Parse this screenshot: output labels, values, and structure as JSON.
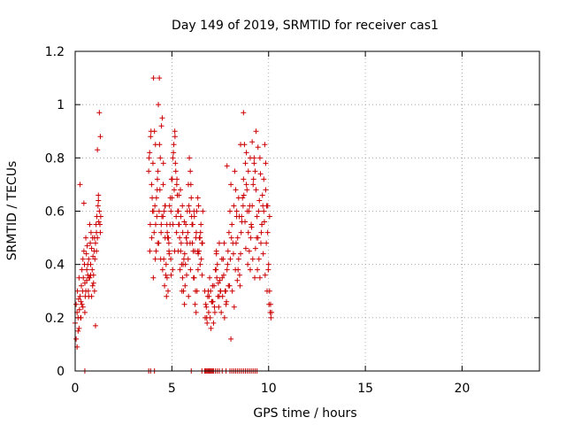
{
  "chart_data": {
    "type": "scatter",
    "title": "Day 149 of 2019, SRMTID for receiver cas1",
    "xlabel": "GPS time / hours",
    "ylabel": "SRMTID / TECUs",
    "xlim": [
      0,
      24
    ],
    "ylim": [
      0,
      1.2
    ],
    "xticks": [
      0,
      5,
      10,
      15,
      20
    ],
    "yticks": [
      0,
      0.2,
      0.4,
      0.6,
      0.8,
      1,
      1.2
    ],
    "ytick_labels": [
      "0",
      "0.2",
      "0.4",
      "0.6",
      "0.8",
      "1",
      "1.2"
    ],
    "grid": true,
    "marker": "+",
    "color": "#cc0000",
    "series": [
      {
        "name": "cas1",
        "x": [
          0.0,
          0.05,
          0.1,
          0.12,
          0.15,
          0.18,
          0.2,
          0.22,
          0.25,
          0.28,
          0.3,
          0.32,
          0.35,
          0.38,
          0.4,
          0.42,
          0.45,
          0.48,
          0.5,
          0.52,
          0.55,
          0.58,
          0.6,
          0.62,
          0.65,
          0.68,
          0.7,
          0.72,
          0.75,
          0.78,
          0.8,
          0.82,
          0.85,
          0.88,
          0.9,
          0.92,
          0.95,
          0.98,
          1.0,
          1.02,
          1.05,
          1.08,
          1.1,
          1.12,
          1.15,
          1.18,
          1.2,
          1.22,
          1.25,
          1.28,
          1.3,
          1.32,
          0.05,
          0.15,
          0.25,
          0.35,
          0.45,
          0.55,
          0.65,
          0.75,
          0.85,
          0.95,
          1.05,
          1.15,
          1.25,
          0.1,
          0.3,
          0.5,
          0.7,
          0.9,
          1.1,
          1.3,
          0.2,
          0.4,
          0.6,
          0.8,
          1.0,
          1.2,
          3.8,
          3.85,
          3.9,
          3.95,
          4.0,
          4.05,
          4.1,
          4.15,
          4.2,
          4.25,
          4.3,
          4.35,
          4.4,
          4.45,
          4.5,
          4.55,
          4.6,
          4.65,
          4.7,
          4.75,
          4.8,
          4.85,
          4.9,
          4.95,
          5.0,
          5.05,
          5.1,
          5.15,
          5.2,
          5.25,
          5.3,
          5.35,
          5.4,
          5.45,
          5.5,
          5.55,
          5.6,
          5.65,
          5.7,
          5.75,
          5.8,
          5.85,
          5.9,
          5.95,
          6.0,
          6.05,
          6.1,
          6.15,
          6.2,
          6.25,
          6.3,
          6.35,
          6.4,
          6.45,
          6.5,
          6.55,
          6.6,
          3.82,
          3.92,
          4.02,
          4.12,
          4.22,
          4.32,
          4.42,
          4.52,
          4.62,
          4.72,
          4.82,
          4.92,
          5.02,
          5.12,
          5.22,
          5.32,
          5.42,
          5.52,
          5.62,
          5.72,
          5.82,
          5.92,
          6.02,
          6.12,
          6.22,
          6.32,
          6.42,
          6.52,
          3.88,
          3.98,
          4.08,
          4.18,
          4.28,
          4.38,
          4.48,
          4.58,
          4.68,
          4.78,
          4.88,
          4.98,
          5.08,
          5.18,
          5.28,
          5.38,
          5.48,
          5.58,
          5.68,
          5.78,
          5.88,
          5.98,
          6.08,
          6.18,
          6.28,
          6.38,
          6.48,
          6.58,
          3.86,
          3.96,
          4.06,
          4.16,
          4.26,
          4.36,
          4.46,
          4.56,
          4.66,
          4.76,
          4.86,
          4.96,
          5.06,
          5.16,
          5.26,
          5.36,
          5.46,
          5.56,
          5.66,
          5.76,
          5.86,
          5.96,
          6.06,
          6.16,
          6.26,
          6.36,
          6.46,
          6.56,
          4.04,
          4.14,
          4.24,
          4.34,
          4.44,
          4.54,
          4.64,
          4.74,
          4.84,
          4.94,
          5.04,
          5.14,
          5.24,
          5.34,
          5.44,
          5.54,
          5.64,
          5.74,
          5.84,
          5.94,
          6.04,
          6.14,
          6.24,
          6.34,
          6.7,
          6.75,
          6.8,
          6.85,
          6.9,
          6.95,
          7.0,
          7.05,
          7.1,
          7.15,
          7.2,
          7.25,
          7.3,
          7.35,
          7.4,
          7.45,
          7.5,
          7.55,
          7.6,
          7.65,
          7.7,
          7.75,
          7.8,
          7.85,
          7.9,
          7.95,
          8.0,
          8.05,
          8.1,
          8.15,
          8.2,
          8.25,
          8.3,
          8.35,
          8.4,
          8.45,
          8.5,
          8.55,
          8.6,
          8.65,
          8.7,
          8.75,
          8.8,
          8.85,
          8.9,
          8.95,
          9.0,
          9.05,
          9.1,
          9.15,
          9.2,
          9.25,
          9.3,
          9.35,
          9.4,
          9.45,
          9.5,
          9.55,
          9.6,
          9.65,
          9.7,
          9.75,
          9.8,
          9.85,
          9.9,
          9.95,
          10.0,
          10.05,
          10.1,
          10.15,
          6.72,
          6.82,
          6.92,
          7.02,
          7.12,
          7.22,
          7.32,
          7.42,
          7.52,
          7.62,
          7.72,
          7.82,
          7.92,
          8.02,
          8.12,
          8.22,
          8.32,
          8.42,
          8.52,
          8.62,
          8.72,
          8.82,
          8.92,
          9.02,
          9.12,
          9.22,
          9.32,
          9.42,
          9.52,
          9.62,
          9.72,
          9.82,
          9.92,
          10.02,
          10.12,
          6.78,
          6.88,
          6.98,
          7.08,
          7.18,
          7.28,
          7.38,
          7.48,
          7.58,
          7.68,
          7.78,
          7.88,
          7.98,
          8.08,
          8.18,
          8.28,
          8.38,
          8.48,
          8.58,
          8.68,
          8.78,
          8.88,
          8.98,
          9.08,
          9.18,
          9.28,
          9.38,
          9.48,
          9.58,
          9.68,
          9.78,
          9.88,
          9.98,
          10.08,
          7.3,
          7.45,
          7.85,
          8.05,
          8.35,
          8.45,
          8.55,
          8.7,
          8.85,
          8.95,
          9.05,
          9.15,
          9.25,
          9.35,
          9.45,
          9.55,
          9.65,
          9.75,
          9.85,
          9.95,
          10.05,
          0.5,
          3.8,
          3.9,
          4.1,
          6.0,
          6.55,
          6.7,
          6.75,
          6.8,
          6.85,
          6.9,
          6.95,
          7.0,
          7.05,
          7.1,
          7.15,
          7.25,
          7.35,
          7.45,
          7.6,
          7.8,
          8.0,
          8.1,
          8.2,
          8.3,
          8.4,
          8.5,
          8.6,
          8.7,
          8.8,
          8.9,
          9.0,
          9.1,
          9.2,
          9.3,
          9.4
        ],
        "y": [
          0.18,
          0.25,
          0.22,
          0.3,
          0.2,
          0.27,
          0.35,
          0.23,
          0.28,
          0.2,
          0.26,
          0.32,
          0.38,
          0.3,
          0.42,
          0.35,
          0.45,
          0.4,
          0.33,
          0.28,
          0.5,
          0.44,
          0.38,
          0.47,
          0.36,
          0.3,
          0.42,
          0.35,
          0.55,
          0.48,
          0.4,
          0.52,
          0.46,
          0.38,
          0.5,
          0.43,
          0.36,
          0.45,
          0.5,
          0.42,
          0.48,
          0.55,
          0.52,
          0.58,
          0.5,
          0.62,
          0.66,
          0.56,
          0.6,
          0.55,
          0.52,
          0.58,
          0.12,
          0.15,
          0.7,
          0.25,
          0.63,
          0.3,
          0.4,
          0.35,
          0.28,
          0.33,
          0.17,
          0.83,
          0.97,
          0.09,
          0.2,
          0.22,
          0.28,
          0.32,
          0.45,
          0.88,
          0.16,
          0.24,
          0.34,
          0.36,
          0.3,
          0.64,
          0.75,
          0.82,
          0.88,
          0.7,
          0.6,
          1.1,
          0.9,
          0.85,
          0.65,
          0.72,
          1.0,
          1.1,
          0.8,
          0.55,
          0.95,
          0.7,
          0.6,
          0.5,
          0.4,
          0.35,
          0.3,
          0.45,
          0.55,
          0.6,
          0.65,
          0.8,
          0.85,
          0.9,
          0.75,
          0.7,
          0.6,
          0.55,
          0.5,
          0.45,
          0.4,
          0.35,
          0.3,
          0.25,
          0.4,
          0.5,
          0.6,
          0.7,
          0.8,
          0.75,
          0.65,
          0.55,
          0.45,
          0.35,
          0.25,
          0.22,
          0.3,
          0.38,
          0.45,
          0.5,
          0.55,
          0.48,
          0.6,
          0.8,
          0.9,
          0.78,
          0.62,
          0.58,
          0.48,
          0.42,
          0.38,
          0.32,
          0.28,
          0.5,
          0.65,
          0.72,
          0.68,
          0.58,
          0.45,
          0.38,
          0.3,
          0.42,
          0.55,
          0.52,
          0.6,
          0.58,
          0.35,
          0.3,
          0.45,
          0.5,
          0.42,
          0.55,
          0.65,
          0.52,
          0.45,
          0.75,
          0.68,
          0.58,
          0.42,
          0.36,
          0.5,
          0.62,
          0.72,
          0.82,
          0.78,
          0.66,
          0.55,
          0.48,
          0.4,
          0.32,
          0.48,
          0.62,
          0.7,
          0.55,
          0.45,
          0.6,
          0.62,
          0.52,
          0.48,
          0.45,
          0.5,
          0.6,
          0.55,
          0.48,
          0.85,
          0.92,
          0.78,
          0.62,
          0.52,
          0.44,
          0.36,
          0.55,
          0.88,
          0.72,
          0.66,
          0.58,
          0.52,
          0.44,
          0.36,
          0.28,
          0.38,
          0.48,
          0.58,
          0.52,
          0.44,
          0.4,
          0.36,
          0.35,
          0.42,
          0.68,
          0.6,
          0.52,
          0.58,
          0.62,
          0.55,
          0.48,
          0.42,
          0.38,
          0.45,
          0.52,
          0.6,
          0.68,
          0.62,
          0.56,
          0.5,
          0.42,
          0.48,
          0.55,
          0.6,
          0.5,
          0.65,
          0.3,
          0.25,
          0.2,
          0.28,
          0.22,
          0.35,
          0.3,
          0.26,
          0.32,
          0.18,
          0.24,
          0.38,
          0.45,
          0.4,
          0.33,
          0.28,
          0.3,
          0.22,
          0.35,
          0.42,
          0.48,
          0.3,
          0.25,
          0.38,
          0.45,
          0.52,
          0.6,
          0.7,
          0.55,
          0.48,
          0.62,
          0.75,
          0.68,
          0.58,
          0.5,
          0.42,
          0.36,
          0.44,
          0.58,
          0.65,
          0.72,
          0.85,
          0.78,
          0.7,
          0.6,
          0.52,
          0.45,
          0.38,
          0.55,
          0.62,
          0.7,
          0.8,
          0.75,
          0.68,
          0.58,
          0.5,
          0.42,
          0.35,
          0.48,
          0.55,
          0.62,
          0.72,
          0.85,
          0.78,
          0.62,
          0.52,
          0.4,
          0.3,
          0.25,
          0.22,
          0.2,
          0.18,
          0.28,
          0.16,
          0.26,
          0.22,
          0.35,
          0.24,
          0.3,
          0.28,
          0.2,
          0.26,
          0.32,
          0.42,
          0.3,
          0.24,
          0.48,
          0.38,
          0.32,
          0.56,
          0.66,
          0.46,
          0.4,
          0.62,
          0.54,
          0.72,
          0.46,
          0.38,
          0.64,
          0.52,
          0.44,
          0.36,
          0.3,
          0.25,
          0.2,
          0.24,
          0.3,
          0.2,
          0.26,
          0.32,
          0.38,
          0.28,
          0.34,
          0.42,
          0.36,
          0.3,
          0.4,
          0.32,
          0.5,
          0.44,
          0.38,
          0.34,
          0.58,
          0.52,
          0.62,
          0.56,
          0.68,
          0.6,
          0.5,
          0.42,
          0.35,
          0.5,
          0.6,
          0.74,
          0.66,
          0.56,
          0.48,
          0.38,
          0.22,
          0.44,
          0.48,
          0.77,
          0.12,
          0.6,
          0.65,
          0.85,
          0.97,
          0.82,
          0.75,
          0.8,
          0.86,
          0.78,
          0.9,
          0.84,
          0.8,
          0.55,
          0.6,
          0.68,
          0.62,
          0.58,
          0,
          0,
          0,
          0,
          0,
          0,
          0,
          0,
          0,
          0,
          0,
          0,
          0,
          0,
          0,
          0,
          0,
          0,
          0,
          0,
          0,
          0,
          0,
          0,
          0,
          0,
          0,
          0,
          0,
          0,
          0,
          0,
          0,
          0,
          0,
          0
        ]
      }
    ]
  }
}
